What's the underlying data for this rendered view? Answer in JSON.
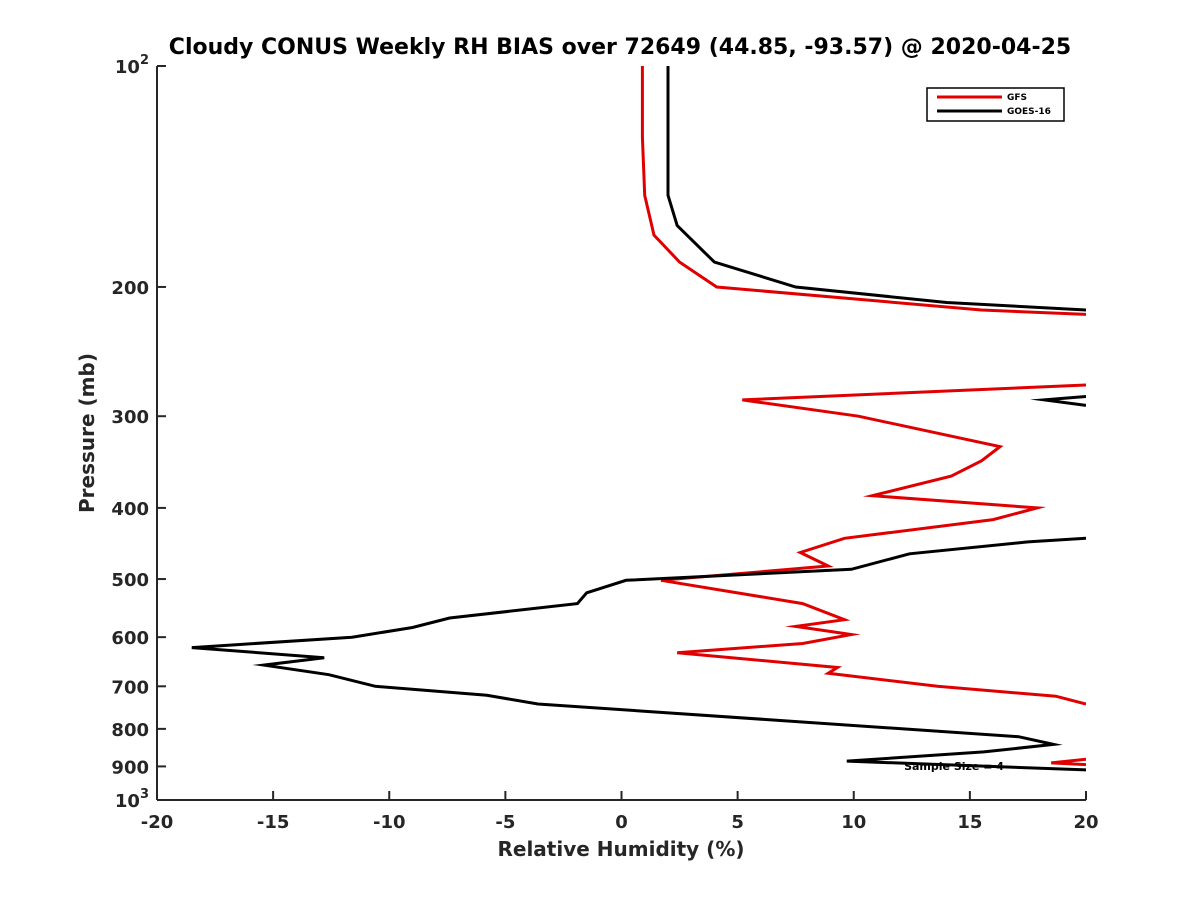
{
  "chart_data": {
    "type": "line",
    "title": "Cloudy CONUS Weekly RH BIAS over 72649 (44.85, -93.57) @ 2020-04-25",
    "xlabel": "Relative Humidity (%)",
    "ylabel": "Pressure (mb)",
    "xlim": [
      -20,
      20
    ],
    "ylim": [
      100,
      1000
    ],
    "y_scale": "log",
    "y_reversed": true,
    "grid": false,
    "legend_position": "top-right",
    "x_ticks": [
      -20,
      -15,
      -10,
      -5,
      0,
      5,
      10,
      15,
      20
    ],
    "x_tick_labels": [
      "-20",
      "-15",
      "-10",
      "-5",
      "0",
      "5",
      "10",
      "15",
      "20"
    ],
    "y_ticks": [
      100,
      200,
      300,
      400,
      500,
      600,
      700,
      800,
      900,
      1000
    ],
    "y_tick_labels": [
      {
        "base": "10",
        "exp": "2"
      },
      {
        "base": "200",
        "exp": ""
      },
      {
        "base": "300",
        "exp": ""
      },
      {
        "base": "400",
        "exp": ""
      },
      {
        "base": "500",
        "exp": ""
      },
      {
        "base": "600",
        "exp": ""
      },
      {
        "base": "700",
        "exp": ""
      },
      {
        "base": "800",
        "exp": ""
      },
      {
        "base": "900",
        "exp": ""
      },
      {
        "base": "10",
        "exp": "3"
      }
    ],
    "annotation": "Sample Size = 4",
    "series": [
      {
        "name": "GFS",
        "color": "#e00000",
        "segments": [
          {
            "x": [
              0.9,
              0.9,
              1.0,
              1.4,
              2.5,
              4.1,
              15.5,
              20.0
            ],
            "y": [
              100,
              125,
              150,
              170,
              185,
              200,
              215,
              218
            ]
          },
          {
            "x": [
              20.0,
              5.2,
              10.2,
              16.3,
              15.5,
              14.2,
              10.8,
              17.9,
              16.0,
              9.6,
              7.7,
              8.9,
              1.7
            ],
            "y": [
              272,
              285,
              300,
              330,
              345,
              362,
              385,
              400,
              415,
              440,
              460,
              480,
              502
            ]
          },
          {
            "x": [
              1.7,
              7.8,
              9.6,
              7.5,
              9.9,
              7.8,
              2.4,
              9.3,
              8.9,
              13.6,
              18.7,
              20.0
            ],
            "y": [
              502,
              540,
              568,
              580,
              595,
              612,
              630,
              660,
              672,
              700,
              722,
              740
            ]
          },
          {
            "x": [
              20.0,
              18.5,
              20.0
            ],
            "y": [
              880,
              890,
              895
            ]
          }
        ]
      },
      {
        "name": "GOES-16",
        "color": "#000000",
        "segments": [
          {
            "x": [
              2.0,
              2.0,
              2.0,
              2.4,
              4.0,
              7.5,
              14.0,
              20.0
            ],
            "y": [
              100,
              125,
              150,
              165,
              185,
              200,
              210,
              215
            ]
          },
          {
            "x": [
              20.0,
              18.2,
              20.0
            ],
            "y": [
              282,
              285,
              290
            ]
          },
          {
            "x": [
              20.0,
              17.5,
              12.4,
              9.9,
              0.2,
              -1.5,
              -1.9,
              -7.4,
              -9.0,
              -11.6,
              -18.5,
              -12.8,
              -15.4,
              -12.6,
              -10.6,
              -5.8,
              -3.6,
              17.1,
              18.6,
              15.6,
              9.7,
              20.0
            ],
            "y": [
              440,
              445,
              462,
              485,
              502,
              522,
              540,
              565,
              582,
              600,
              620,
              640,
              655,
              675,
              700,
              720,
              740,
              820,
              840,
              860,
              885,
              910
            ]
          }
        ]
      }
    ]
  }
}
